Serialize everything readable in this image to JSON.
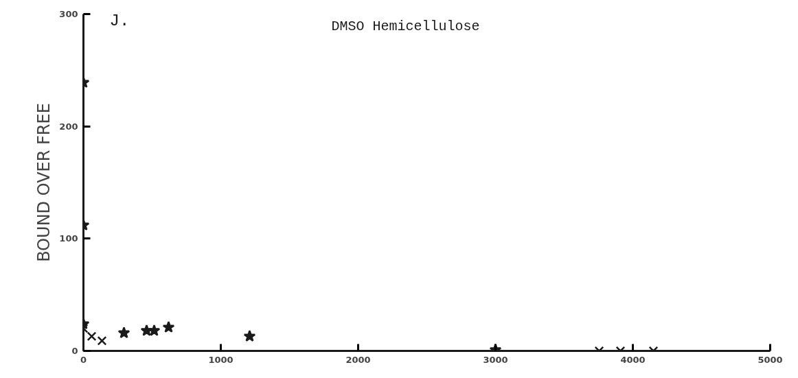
{
  "chart_data": {
    "type": "scatter",
    "title": "DMSO Hemicellulose",
    "ylabel": "BOUND OVER FREE",
    "annotations": [
      "J."
    ],
    "xlim": [
      0,
      5000
    ],
    "ylim": [
      0,
      300
    ],
    "xticks": [
      0,
      1000,
      2000,
      3000,
      4000,
      5000
    ],
    "yticks": [
      0,
      100,
      200,
      300
    ],
    "grid": false,
    "series": [
      {
        "color": "#1a1a1a",
        "marker": "star",
        "x": [
          0,
          0,
          0,
          295,
          460,
          515,
          620,
          1210,
          3000
        ],
        "values": [
          239,
          112,
          24,
          16,
          18,
          18,
          21,
          13,
          1
        ]
      },
      {
        "color": "#1a1a1a",
        "marker": "cross",
        "x": [
          0,
          60,
          135,
          3755,
          3910,
          4150
        ],
        "values": [
          20,
          13,
          9,
          0,
          0,
          0
        ]
      }
    ]
  }
}
